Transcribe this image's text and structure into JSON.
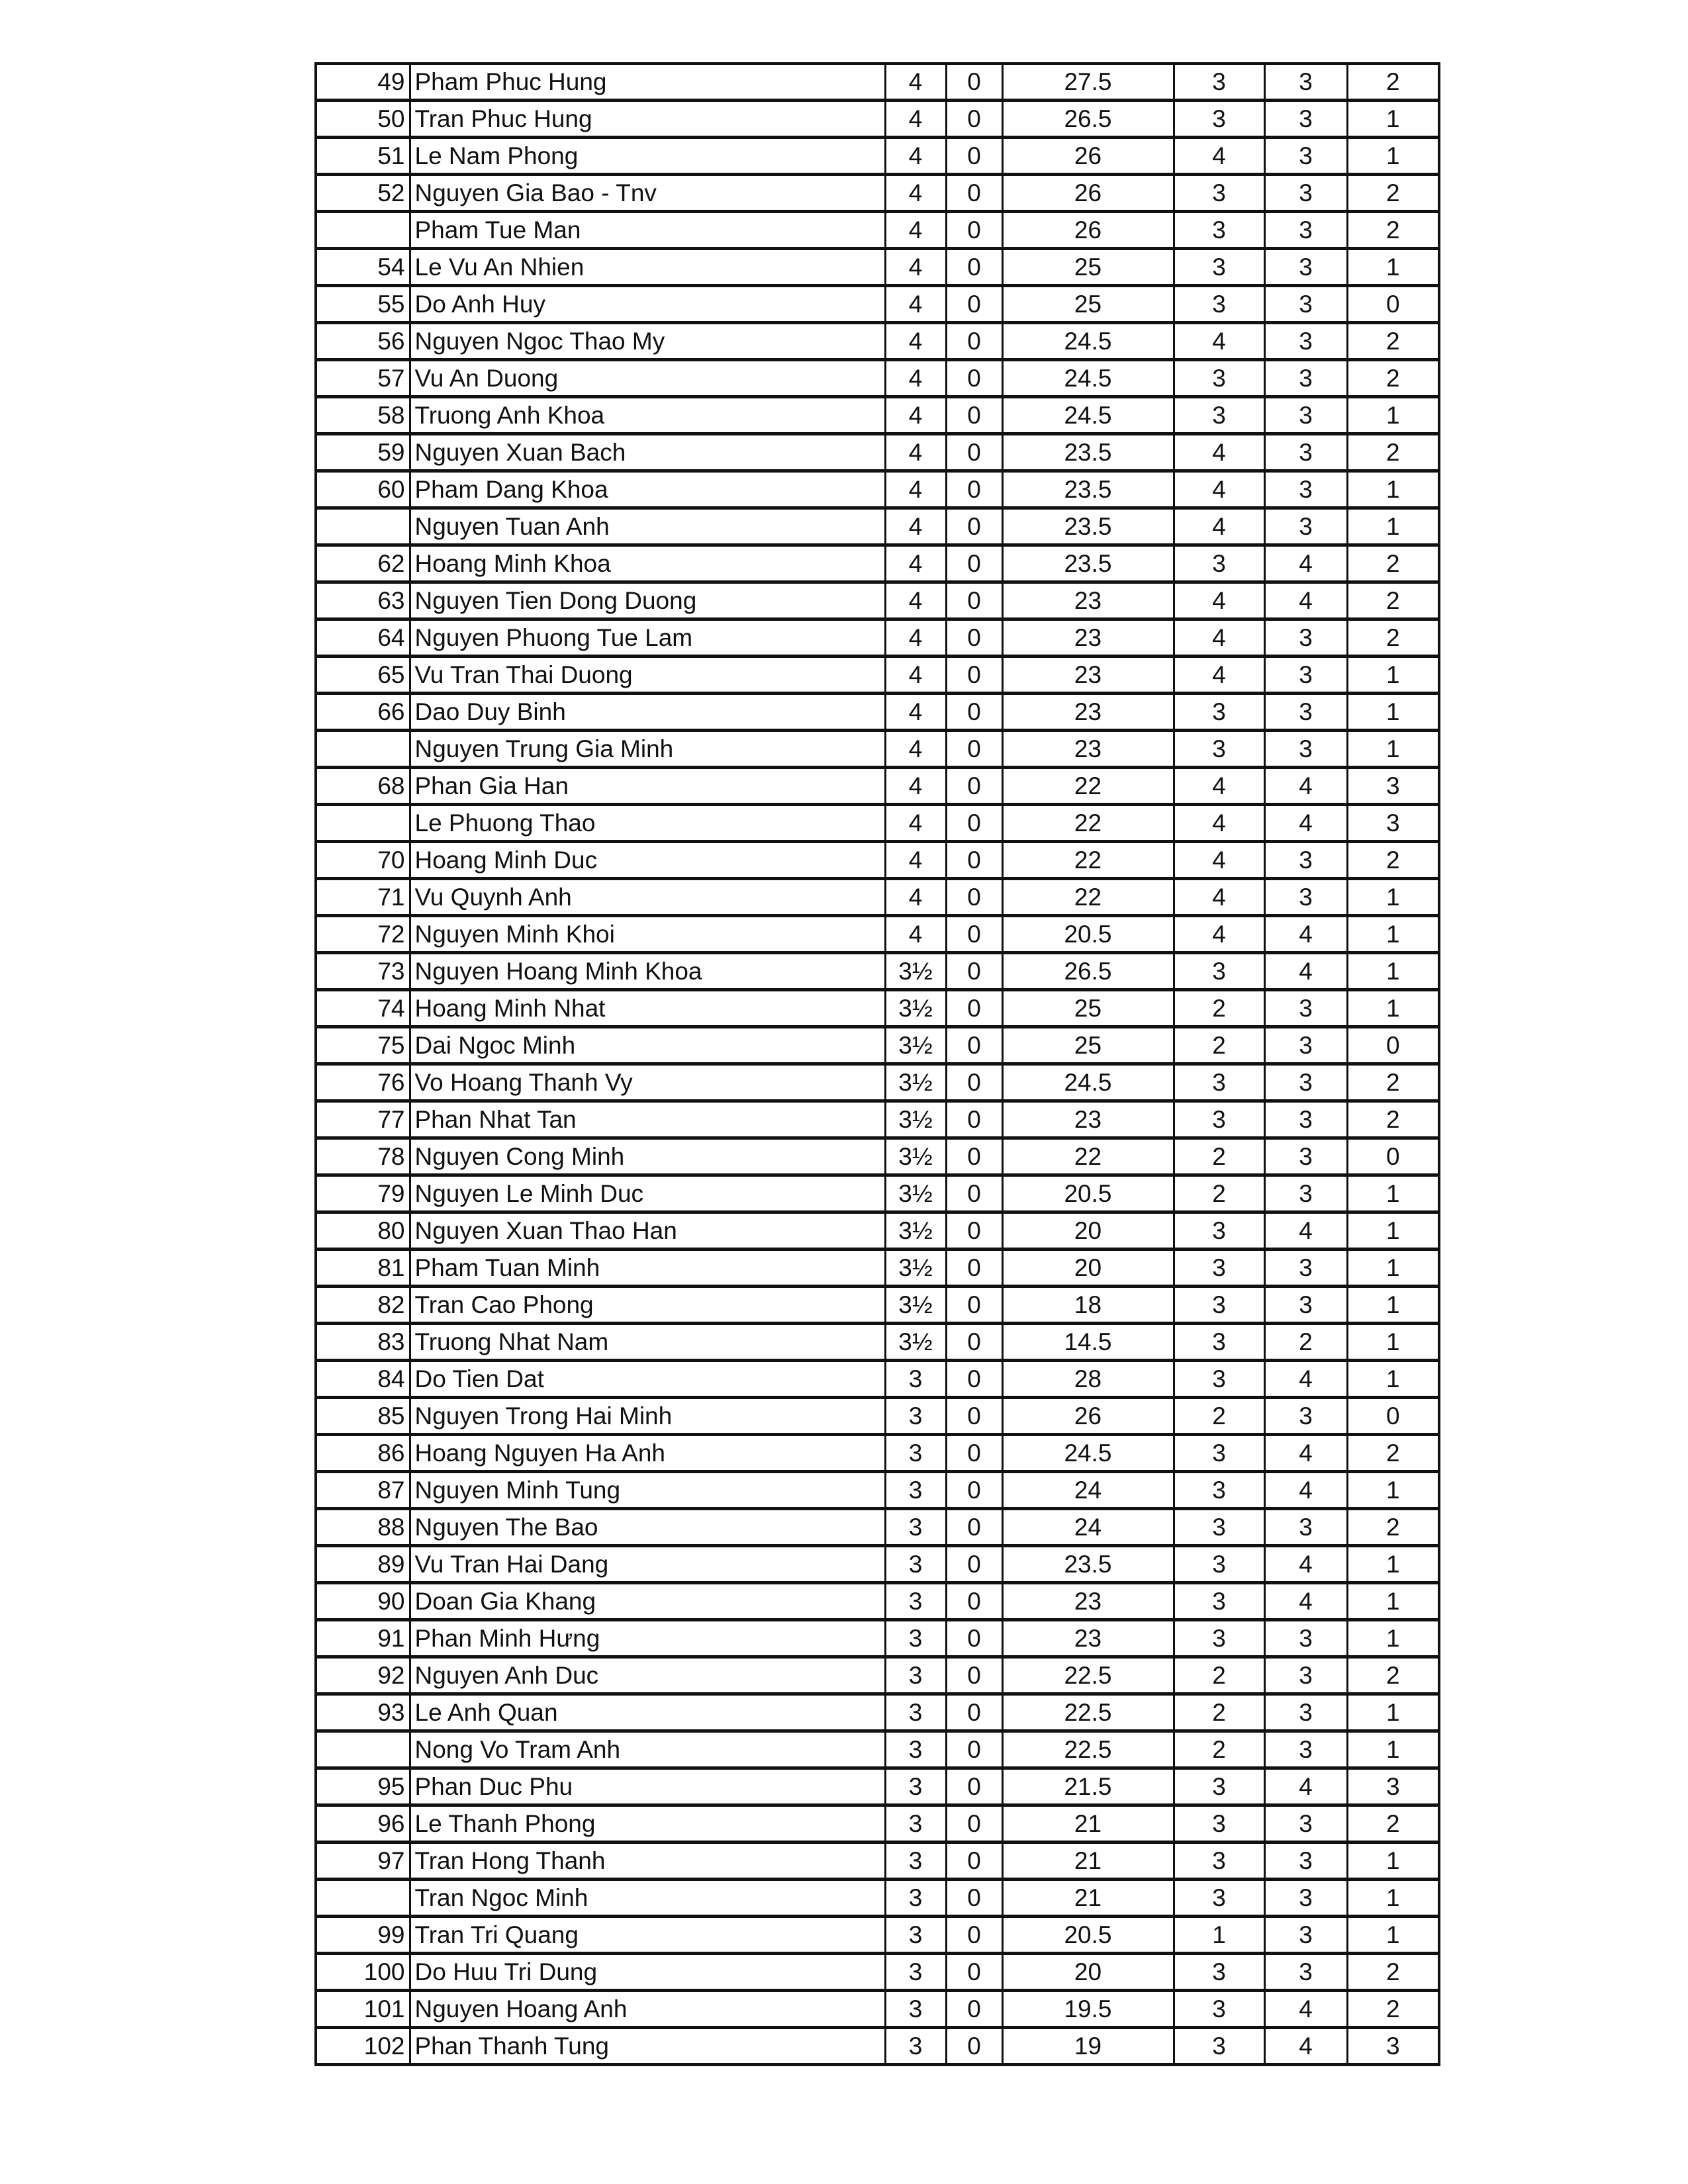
{
  "rows": [
    [
      "49",
      "Pham Phuc Hung",
      "4",
      "0",
      "27.5",
      "3",
      "3",
      "2"
    ],
    [
      "50",
      "Tran Phuc Hung",
      "4",
      "0",
      "26.5",
      "3",
      "3",
      "1"
    ],
    [
      "51",
      "Le Nam Phong",
      "4",
      "0",
      "26",
      "4",
      "3",
      "1"
    ],
    [
      "52",
      "Nguyen Gia Bao - Tnv",
      "4",
      "0",
      "26",
      "3",
      "3",
      "2"
    ],
    [
      "",
      "Pham Tue Man",
      "4",
      "0",
      "26",
      "3",
      "3",
      "2"
    ],
    [
      "54",
      "Le Vu An Nhien",
      "4",
      "0",
      "25",
      "3",
      "3",
      "1"
    ],
    [
      "55",
      "Do Anh Huy",
      "4",
      "0",
      "25",
      "3",
      "3",
      "0"
    ],
    [
      "56",
      "Nguyen Ngoc Thao My",
      "4",
      "0",
      "24.5",
      "4",
      "3",
      "2"
    ],
    [
      "57",
      "Vu An Duong",
      "4",
      "0",
      "24.5",
      "3",
      "3",
      "2"
    ],
    [
      "58",
      "Truong Anh Khoa",
      "4",
      "0",
      "24.5",
      "3",
      "3",
      "1"
    ],
    [
      "59",
      "Nguyen Xuan Bach",
      "4",
      "0",
      "23.5",
      "4",
      "3",
      "2"
    ],
    [
      "60",
      "Pham Dang Khoa",
      "4",
      "0",
      "23.5",
      "4",
      "3",
      "1"
    ],
    [
      "",
      "Nguyen Tuan Anh",
      "4",
      "0",
      "23.5",
      "4",
      "3",
      "1"
    ],
    [
      "62",
      "Hoang Minh Khoa",
      "4",
      "0",
      "23.5",
      "3",
      "4",
      "2"
    ],
    [
      "63",
      "Nguyen Tien Dong Duong",
      "4",
      "0",
      "23",
      "4",
      "4",
      "2"
    ],
    [
      "64",
      "Nguyen Phuong Tue Lam",
      "4",
      "0",
      "23",
      "4",
      "3",
      "2"
    ],
    [
      "65",
      "Vu Tran Thai Duong",
      "4",
      "0",
      "23",
      "4",
      "3",
      "1"
    ],
    [
      "66",
      "Dao Duy Binh",
      "4",
      "0",
      "23",
      "3",
      "3",
      "1"
    ],
    [
      "",
      "Nguyen Trung Gia Minh",
      "4",
      "0",
      "23",
      "3",
      "3",
      "1"
    ],
    [
      "68",
      "Phan Gia Han",
      "4",
      "0",
      "22",
      "4",
      "4",
      "3"
    ],
    [
      "",
      "Le Phuong Thao",
      "4",
      "0",
      "22",
      "4",
      "4",
      "3"
    ],
    [
      "70",
      "Hoang Minh Duc",
      "4",
      "0",
      "22",
      "4",
      "3",
      "2"
    ],
    [
      "71",
      "Vu Quynh Anh",
      "4",
      "0",
      "22",
      "4",
      "3",
      "1"
    ],
    [
      "72",
      "Nguyen Minh Khoi",
      "4",
      "0",
      "20.5",
      "4",
      "4",
      "1"
    ],
    [
      "73",
      "Nguyen Hoang Minh Khoa",
      "3½",
      "0",
      "26.5",
      "3",
      "4",
      "1"
    ],
    [
      "74",
      "Hoang Minh Nhat",
      "3½",
      "0",
      "25",
      "2",
      "3",
      "1"
    ],
    [
      "75",
      "Dai Ngoc Minh",
      "3½",
      "0",
      "25",
      "2",
      "3",
      "0"
    ],
    [
      "76",
      "Vo Hoang Thanh Vy",
      "3½",
      "0",
      "24.5",
      "3",
      "3",
      "2"
    ],
    [
      "77",
      "Phan Nhat Tan",
      "3½",
      "0",
      "23",
      "3",
      "3",
      "2"
    ],
    [
      "78",
      "Nguyen Cong Minh",
      "3½",
      "0",
      "22",
      "2",
      "3",
      "0"
    ],
    [
      "79",
      "Nguyen Le Minh Duc",
      "3½",
      "0",
      "20.5",
      "2",
      "3",
      "1"
    ],
    [
      "80",
      "Nguyen Xuan Thao Han",
      "3½",
      "0",
      "20",
      "3",
      "4",
      "1"
    ],
    [
      "81",
      "Pham Tuan Minh",
      "3½",
      "0",
      "20",
      "3",
      "3",
      "1"
    ],
    [
      "82",
      "Tran Cao Phong",
      "3½",
      "0",
      "18",
      "3",
      "3",
      "1"
    ],
    [
      "83",
      "Truong Nhat Nam",
      "3½",
      "0",
      "14.5",
      "3",
      "2",
      "1"
    ],
    [
      "84",
      "Do Tien Dat",
      "3",
      "0",
      "28",
      "3",
      "4",
      "1"
    ],
    [
      "85",
      "Nguyen Trong Hai Minh",
      "3",
      "0",
      "26",
      "2",
      "3",
      "0"
    ],
    [
      "86",
      "Hoang Nguyen Ha Anh",
      "3",
      "0",
      "24.5",
      "3",
      "4",
      "2"
    ],
    [
      "87",
      "Nguyen Minh Tung",
      "3",
      "0",
      "24",
      "3",
      "4",
      "1"
    ],
    [
      "88",
      "Nguyen The Bao",
      "3",
      "0",
      "24",
      "3",
      "3",
      "2"
    ],
    [
      "89",
      "Vu Tran Hai Dang",
      "3",
      "0",
      "23.5",
      "3",
      "4",
      "1"
    ],
    [
      "90",
      "Doan Gia Khang",
      "3",
      "0",
      "23",
      "3",
      "4",
      "1"
    ],
    [
      "91",
      "Phan Minh Hưng",
      "3",
      "0",
      "23",
      "3",
      "3",
      "1"
    ],
    [
      "92",
      "Nguyen Anh Duc",
      "3",
      "0",
      "22.5",
      "2",
      "3",
      "2"
    ],
    [
      "93",
      "Le Anh Quan",
      "3",
      "0",
      "22.5",
      "2",
      "3",
      "1"
    ],
    [
      "",
      "Nong Vo Tram Anh",
      "3",
      "0",
      "22.5",
      "2",
      "3",
      "1"
    ],
    [
      "95",
      "Phan Duc Phu",
      "3",
      "0",
      "21.5",
      "3",
      "4",
      "3"
    ],
    [
      "96",
      "Le Thanh Phong",
      "3",
      "0",
      "21",
      "3",
      "3",
      "2"
    ],
    [
      "97",
      "Tran Hong Thanh",
      "3",
      "0",
      "21",
      "3",
      "3",
      "1"
    ],
    [
      "",
      "Tran Ngoc Minh",
      "3",
      "0",
      "21",
      "3",
      "3",
      "1"
    ],
    [
      "99",
      "Tran Tri Quang",
      "3",
      "0",
      "20.5",
      "1",
      "3",
      "1"
    ],
    [
      "100",
      "Do Huu Tri Dung",
      "3",
      "0",
      "20",
      "3",
      "3",
      "2"
    ],
    [
      "101",
      "Nguyen Hoang Anh",
      "3",
      "0",
      "19.5",
      "3",
      "4",
      "2"
    ],
    [
      "102",
      "Phan Thanh Tung",
      "3",
      "0",
      "19",
      "3",
      "4",
      "3"
    ]
  ]
}
